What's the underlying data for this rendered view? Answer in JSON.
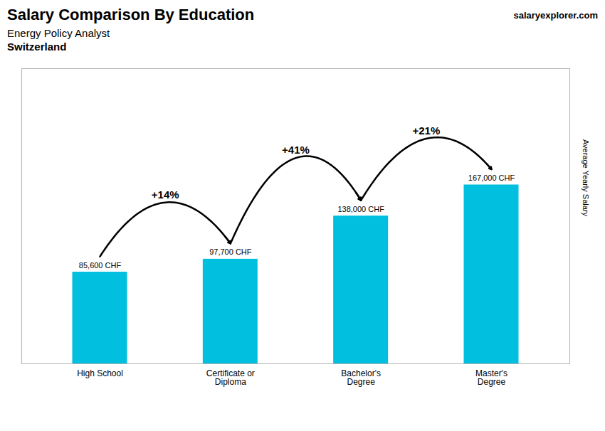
{
  "chart_data": {
    "type": "bar",
    "title": "Salary Comparison By Education",
    "subtitle": [
      "Energy Policy Analyst",
      "Switzerland"
    ],
    "watermark": "salaryexplorer.com",
    "categories": [
      "High School",
      "Certificate or\nDiploma",
      "Bachelor's\nDegree",
      "Master's\nDegree"
    ],
    "values": [
      85600,
      97700,
      138000,
      167000
    ],
    "value_labels": [
      "85,600 CHF",
      "97,700 CHF",
      "138,000 CHF",
      "167,000 CHF"
    ],
    "data_labels": true,
    "annotations": [
      {
        "text": "+14%",
        "from": "High School",
        "to": "Certificate or\nDiploma"
      },
      {
        "text": "+41%",
        "from": "Certificate or\nDiploma",
        "to": "Bachelor's\nDegree"
      },
      {
        "text": "+21%",
        "from": "Bachelor's\nDegree",
        "to": "Master's\nDegree"
      }
    ],
    "ylabel": "Average Yearly Salary",
    "ylim": [
      0,
      275550
    ],
    "tick_labels": "x",
    "grid": false,
    "color": "#00bfdf"
  }
}
